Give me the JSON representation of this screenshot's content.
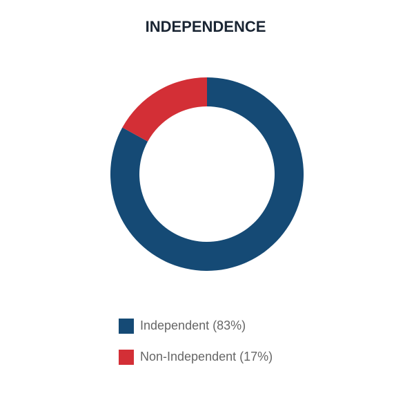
{
  "chart_data": {
    "type": "pie",
    "title": "INDEPENDENCE",
    "categories": [
      "Independent (83%)",
      "Non-Independent (17%)"
    ],
    "values": [
      83,
      17
    ],
    "colors": [
      "#154a75",
      "#d32f36"
    ],
    "donut": true,
    "legend": "bottom"
  }
}
